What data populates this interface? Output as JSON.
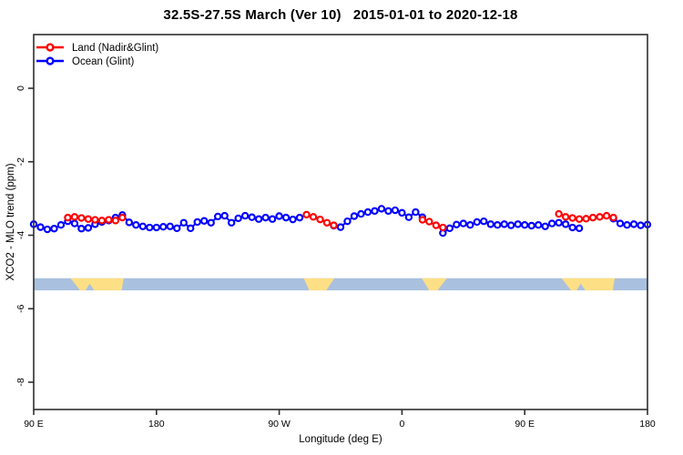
{
  "title": "32.5S-27.5S March (Ver 10)   2015-01-01 to 2020-12-18",
  "chart_data": {
    "type": "line",
    "title": "32.5S-27.5S March (Ver 10)   2015-01-01 to 2020-12-18",
    "xlabel": "Longitude (deg E)",
    "ylabel": "XCO2 - MLO trend (ppm)",
    "xlim": [
      90,
      540
    ],
    "ylim": [
      -8.74,
      1.46
    ],
    "grid": false,
    "legend_position": "top-left",
    "x_ticks": [
      {
        "pos": 90,
        "label": "90 E"
      },
      {
        "pos": 180,
        "label": "180"
      },
      {
        "pos": 270,
        "label": "90 W"
      },
      {
        "pos": 360,
        "label": "0"
      },
      {
        "pos": 450,
        "label": "90 E"
      },
      {
        "pos": 540,
        "label": "180"
      }
    ],
    "y_ticks": [
      0,
      -2,
      -4,
      -6,
      -8
    ],
    "legend": [
      {
        "label": "Land (Nadir&Glint)",
        "color": "#FF0000"
      },
      {
        "label": "Ocean (Glint)",
        "color": "#0000FF"
      }
    ],
    "x": [
      90,
      95,
      100,
      105,
      110,
      115,
      120,
      125,
      130,
      135,
      140,
      145,
      150,
      155,
      160,
      165,
      170,
      175,
      180,
      185,
      190,
      195,
      200,
      205,
      210,
      215,
      220,
      225,
      230,
      235,
      240,
      245,
      250,
      255,
      260,
      265,
      270,
      275,
      280,
      285,
      290,
      295,
      300,
      305,
      310,
      315,
      320,
      325,
      330,
      335,
      340,
      345,
      350,
      355,
      360,
      365,
      370,
      375,
      380,
      385,
      390,
      395,
      400,
      405,
      410,
      415,
      420,
      425,
      430,
      435,
      440,
      445,
      450,
      455,
      460,
      465,
      470,
      475,
      480,
      485,
      490,
      495,
      500,
      505,
      510,
      515,
      520,
      525,
      530,
      535,
      540
    ],
    "series": [
      {
        "name": "Ocean (Glint)",
        "color": "#0000FF",
        "values": [
          -3.7,
          -3.78,
          -3.84,
          -3.82,
          -3.72,
          -3.62,
          -3.68,
          -3.82,
          -3.8,
          -3.7,
          -3.64,
          -3.6,
          -3.52,
          -3.45,
          -3.65,
          -3.72,
          -3.76,
          -3.79,
          -3.79,
          -3.77,
          -3.76,
          -3.81,
          -3.66,
          -3.81,
          -3.64,
          -3.61,
          -3.66,
          -3.49,
          -3.47,
          -3.66,
          -3.54,
          -3.47,
          -3.51,
          -3.56,
          -3.52,
          -3.56,
          -3.48,
          -3.52,
          -3.57,
          -3.52,
          null,
          null,
          null,
          null,
          -3.74,
          -3.78,
          -3.62,
          -3.48,
          -3.42,
          -3.37,
          -3.34,
          -3.28,
          -3.34,
          -3.32,
          -3.39,
          -3.51,
          -3.37,
          -3.51,
          null,
          null,
          -3.94,
          -3.81,
          -3.71,
          -3.68,
          -3.72,
          -3.64,
          -3.62,
          -3.7,
          -3.72,
          -3.7,
          -3.73,
          -3.7,
          -3.72,
          -3.74,
          -3.72,
          -3.76,
          -3.68,
          -3.66,
          -3.7,
          -3.79,
          -3.81,
          null,
          null,
          null,
          null,
          -3.55,
          -3.68,
          -3.72,
          -3.7,
          -3.73,
          -3.71
        ]
      },
      {
        "name": "Land (Nadir&Glint)",
        "color": "#FF0000",
        "values": [
          null,
          null,
          null,
          null,
          null,
          -3.52,
          -3.5,
          -3.53,
          -3.56,
          -3.58,
          -3.6,
          -3.58,
          -3.6,
          -3.52,
          null,
          null,
          null,
          null,
          null,
          null,
          null,
          null,
          null,
          null,
          null,
          null,
          null,
          null,
          null,
          null,
          null,
          null,
          null,
          null,
          null,
          null,
          null,
          null,
          null,
          null,
          -3.44,
          -3.5,
          -3.57,
          -3.66,
          -3.73,
          null,
          null,
          null,
          null,
          null,
          null,
          null,
          null,
          null,
          null,
          null,
          null,
          -3.58,
          -3.63,
          -3.73,
          -3.79,
          null,
          null,
          null,
          null,
          null,
          null,
          null,
          null,
          null,
          null,
          null,
          null,
          null,
          null,
          null,
          null,
          -3.42,
          -3.5,
          -3.53,
          -3.56,
          -3.55,
          -3.52,
          -3.5,
          -3.47,
          -3.52,
          null,
          null,
          null,
          null,
          null
        ]
      }
    ],
    "land_ocean_strip": {
      "ocean_color": "#A9C0DF",
      "land_color": "#FDDF85",
      "y_top": -5.17,
      "y_bottom": -5.5,
      "land_polygons": [
        {
          "name": "australia",
          "points": [
            [
              117,
              0
            ],
            [
              156,
              0
            ],
            [
              154.5,
              1
            ],
            [
              134.5,
              1
            ],
            [
              131,
              0.45
            ],
            [
              128,
              1
            ],
            [
              124,
              1
            ]
          ]
        },
        {
          "name": "south-america",
          "points": [
            [
              288,
              0
            ],
            [
              310.5,
              0
            ],
            [
              304.5,
              1
            ],
            [
              292,
              1
            ]
          ]
        },
        {
          "name": "africa",
          "points": [
            [
              374.5,
              0
            ],
            [
              393,
              0
            ],
            [
              386,
              1
            ],
            [
              380,
              1
            ]
          ]
        },
        {
          "name": "australia-repeat",
          "points": [
            [
              477,
              0
            ],
            [
              516,
              0
            ],
            [
              514.5,
              1
            ],
            [
              494.5,
              1
            ],
            [
              491,
              0.45
            ],
            [
              488,
              1
            ],
            [
              484,
              1
            ]
          ]
        }
      ]
    }
  }
}
